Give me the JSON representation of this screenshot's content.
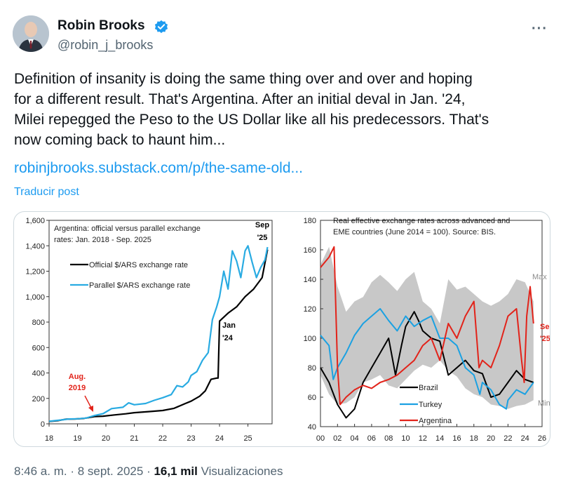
{
  "author": {
    "name": "Robin Brooks",
    "handle": "@robin_j_brooks",
    "verified": true,
    "avatar_icon": "person-avatar-icon"
  },
  "menu_icon": "more-options-icon",
  "tweet": {
    "lines": [
      "Definition of insanity is doing the same thing over and over and hoping",
      "for a different result. That's Argentina. After an initial deval in Jan. '24,",
      "Milei repegged the Peso to the US Dollar like all his predecessors. That's",
      "now coming back to haunt him..."
    ],
    "link": "robinjbrooks.substack.com/p/the-same-old...",
    "translate": "Traducir post"
  },
  "footer": {
    "time": "8:46 a. m.",
    "sep1": "·",
    "date": "8 sept. 2025",
    "sep2": "·",
    "views_count": "16,1 mil",
    "views_label": "Visualizaciones"
  },
  "colors": {
    "accent": "#1d9bf0",
    "official": "#000000",
    "parallel": "#29abe2",
    "brazil": "#000000",
    "turkey": "#1ba1e2",
    "argentina": "#e2231a",
    "band": "#c8c8c8"
  },
  "chart_data": [
    {
      "type": "line",
      "title_lines": [
        "Argentina: official versus parallel exchange",
        "rates: Jan. 2018 - Sep. 2025"
      ],
      "x_ticks": [
        "18",
        "19",
        "20",
        "21",
        "22",
        "23",
        "24",
        "25"
      ],
      "y_ticks": [
        "0",
        "200",
        "400",
        "600",
        "800",
        "1,000",
        "1,200",
        "1,400",
        "1,600"
      ],
      "ylim": [
        0,
        1600
      ],
      "xlim": [
        2018,
        2025.85
      ],
      "series": [
        {
          "name": "Official $/ARS exchange rate",
          "x": [
            2018.0,
            2018.3,
            2018.6,
            2018.9,
            2019.2,
            2019.6,
            2019.9,
            2020.3,
            2020.7,
            2021.0,
            2021.5,
            2022.0,
            2022.4,
            2022.8,
            2023.0,
            2023.3,
            2023.5,
            2023.7,
            2023.9,
            2023.95,
            2024.0,
            2024.3,
            2024.6,
            2024.9,
            2025.2,
            2025.5,
            2025.69
          ],
          "y": [
            19,
            25,
            37,
            38,
            42,
            57,
            60,
            70,
            79,
            88,
            96,
            105,
            122,
            160,
            178,
            217,
            260,
            350,
            360,
            360,
            808,
            870,
            920,
            1000,
            1060,
            1150,
            1370
          ]
        },
        {
          "name": "Parallel $/ARS exchange rate",
          "x": [
            2018.0,
            2018.4,
            2018.7,
            2019.0,
            2019.3,
            2019.6,
            2019.9,
            2020.2,
            2020.6,
            2020.8,
            2021.0,
            2021.4,
            2021.7,
            2022.0,
            2022.3,
            2022.5,
            2022.7,
            2022.9,
            2023.0,
            2023.2,
            2023.4,
            2023.6,
            2023.75,
            2023.9,
            2024.0,
            2024.15,
            2024.3,
            2024.45,
            2024.6,
            2024.75,
            2024.9,
            2025.0,
            2025.15,
            2025.3,
            2025.45,
            2025.6,
            2025.69
          ],
          "y": [
            20,
            30,
            38,
            40,
            45,
            65,
            80,
            120,
            130,
            165,
            150,
            160,
            185,
            205,
            230,
            300,
            290,
            330,
            380,
            410,
            500,
            560,
            820,
            920,
            1000,
            1200,
            1060,
            1360,
            1280,
            1150,
            1360,
            1400,
            1270,
            1150,
            1230,
            1290,
            1390
          ]
        }
      ],
      "annotations": [
        {
          "text_lines": [
            "Sep",
            "'25"
          ],
          "color": "#000000"
        },
        {
          "text_lines": [
            "Jan",
            "'24"
          ],
          "color": "#000000"
        },
        {
          "text_lines": [
            "Aug.",
            "2019"
          ],
          "color": "#e2231a"
        }
      ]
    },
    {
      "type": "line",
      "title_lines": [
        "Real effective exchange rates across advanced and",
        "EME countries (June 2014 = 100). Source: BIS."
      ],
      "x_ticks": [
        "00",
        "02",
        "04",
        "06",
        "08",
        "10",
        "12",
        "14",
        "16",
        "18",
        "20",
        "22",
        "24",
        "26"
      ],
      "y_ticks": [
        "40",
        "60",
        "80",
        "100",
        "120",
        "140",
        "160",
        "180"
      ],
      "ylim": [
        40,
        180
      ],
      "xlim": [
        2000,
        2026
      ],
      "band": {
        "name_max": "Max",
        "name_min": "Min",
        "x": [
          2000,
          2001,
          2002,
          2003,
          2004,
          2005,
          2006,
          2007,
          2008,
          2009,
          2010,
          2011,
          2012,
          2013,
          2014,
          2015,
          2016,
          2017,
          2018,
          2019,
          2020,
          2021,
          2022,
          2023,
          2024,
          2025
        ],
        "max": [
          150,
          162,
          135,
          118,
          125,
          128,
          138,
          143,
          138,
          132,
          140,
          145,
          125,
          120,
          110,
          140,
          133,
          135,
          130,
          125,
          122,
          125,
          130,
          140,
          138,
          125
        ],
        "min": [
          75,
          62,
          55,
          56,
          60,
          70,
          72,
          75,
          68,
          66,
          72,
          78,
          82,
          80,
          85,
          78,
          74,
          66,
          62,
          60,
          55,
          54,
          52,
          54,
          55,
          58
        ]
      },
      "series": [
        {
          "name": "Brazil",
          "x": [
            2000,
            2001,
            2002,
            2003,
            2004,
            2005,
            2006,
            2007,
            2008,
            2008.8,
            2009.5,
            2010,
            2011,
            2011.5,
            2012,
            2013,
            2014,
            2015,
            2016,
            2017,
            2018,
            2019,
            2020,
            2021,
            2022,
            2023,
            2024,
            2025
          ],
          "y": [
            80,
            70,
            55,
            46,
            52,
            70,
            80,
            90,
            100,
            75,
            95,
            108,
            118,
            112,
            105,
            100,
            98,
            75,
            80,
            85,
            78,
            76,
            60,
            62,
            70,
            78,
            72,
            70
          ]
        },
        {
          "name": "Turkey",
          "x": [
            2000,
            2001,
            2001.5,
            2002,
            2003,
            2004,
            2005,
            2006,
            2007,
            2008,
            2009,
            2010,
            2011,
            2012,
            2013,
            2014,
            2015,
            2016,
            2017,
            2018,
            2018.7,
            2019,
            2020,
            2021,
            2021.8,
            2022,
            2023,
            2024,
            2025
          ],
          "y": [
            102,
            95,
            72,
            80,
            90,
            102,
            110,
            115,
            120,
            112,
            105,
            115,
            108,
            112,
            115,
            100,
            100,
            95,
            80,
            75,
            62,
            70,
            65,
            55,
            52,
            58,
            65,
            62,
            70
          ]
        },
        {
          "name": "Argentina",
          "x": [
            2000,
            2001,
            2001.6,
            2002,
            2002.3,
            2003,
            2004,
            2005,
            2006,
            2007,
            2008,
            2009,
            2010,
            2011,
            2012,
            2013,
            2014,
            2015,
            2016,
            2017,
            2018,
            2018.6,
            2019,
            2020,
            2021,
            2022,
            2023,
            2023.6,
            2023.9,
            2024.2,
            2024.6,
            2025
          ],
          "y": [
            148,
            155,
            162,
            80,
            55,
            60,
            65,
            68,
            66,
            70,
            72,
            75,
            80,
            85,
            95,
            100,
            85,
            110,
            100,
            115,
            125,
            80,
            85,
            80,
            95,
            115,
            120,
            85,
            70,
            115,
            135,
            110
          ]
        }
      ],
      "annotations": [
        {
          "text": "Max",
          "color": "#8c8c8c"
        },
        {
          "text": "Min",
          "color": "#8c8c8c"
        },
        {
          "text_lines": [
            "Sep",
            "'25"
          ],
          "color": "#e2231a"
        }
      ]
    }
  ]
}
